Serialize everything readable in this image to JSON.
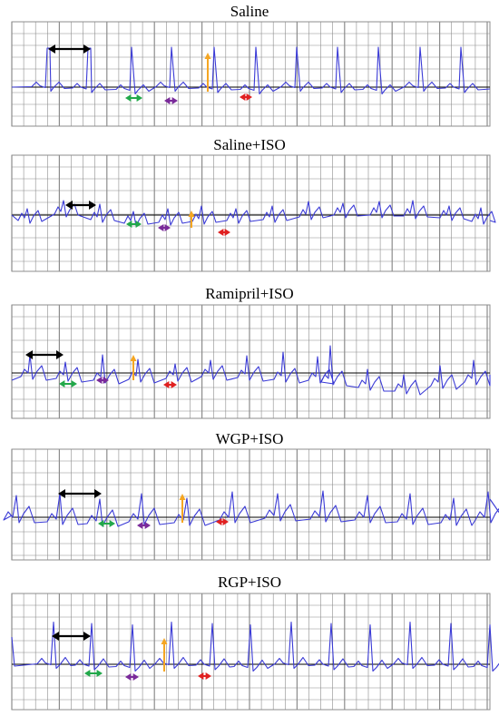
{
  "colors": {
    "trace": "#3a3ad6",
    "grid": "#8c8c8c",
    "baseline": "#000000",
    "rr_arrow": "#000000",
    "green_arrow": "#22a84a",
    "purple_arrow": "#7a2a9a",
    "orange_arrow": "#f5a623",
    "red_arrow": "#e02020"
  },
  "panels": [
    {
      "title": "Saline",
      "pattern": "saline"
    },
    {
      "title": "Saline+ISO",
      "pattern": "iso"
    },
    {
      "title": "Ramipril+ISO",
      "pattern": "ramipril"
    },
    {
      "title": "WGP+ISO",
      "pattern": "wgp"
    },
    {
      "title": "RGP+ISO",
      "pattern": "rgp"
    }
  ]
}
